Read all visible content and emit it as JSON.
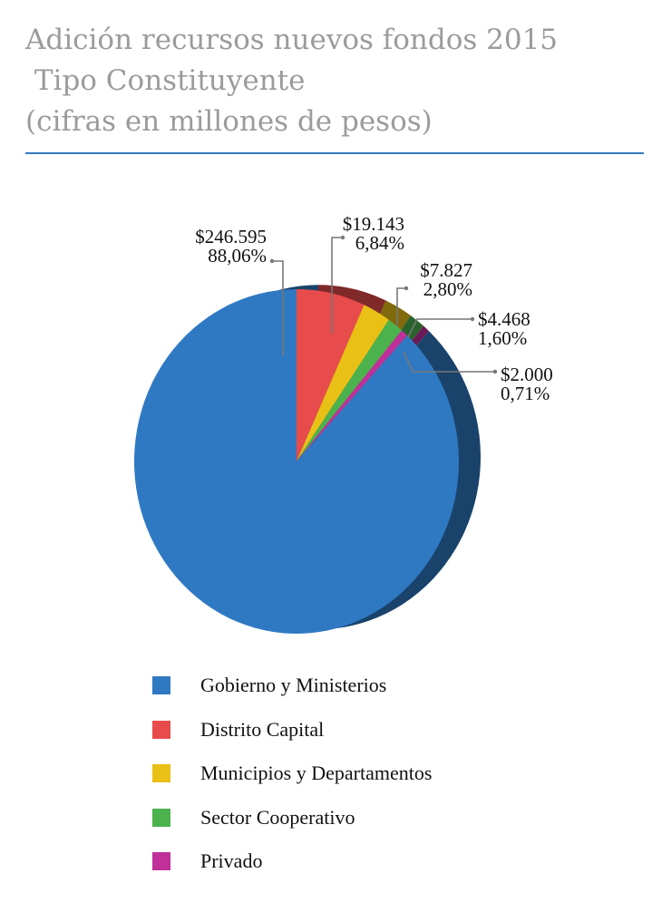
{
  "title": {
    "line1": "Adición recursos nuevos fondos 2015",
    "line2": " Tipo Constituyente",
    "line3": "(cifras en millones de pesos)"
  },
  "chart_data": {
    "type": "pie",
    "title": "Adición recursos nuevos fondos 2015 Tipo Constituyente (cifras en millones de pesos)",
    "categories": [
      "Gobierno y Ministerios",
      "Distrito Capital",
      "Municipios y Departamentos",
      "Sector Cooperativo",
      "Privado"
    ],
    "values": [
      246595,
      19143,
      7827,
      4468,
      2000
    ],
    "percentages": [
      88.06,
      6.84,
      2.8,
      1.6,
      0.71
    ],
    "value_labels": [
      "$246.595",
      "$19.143",
      "$7.827",
      "$4.468",
      "$2.000"
    ],
    "percent_labels": [
      "88,06%",
      "6,84%",
      "2,80%",
      "1,60%",
      "0,71%"
    ],
    "colors": [
      "#2f79c3",
      "#e84b4b",
      "#e9c116",
      "#4cb24e",
      "#c0309a"
    ],
    "legend_position": "bottom"
  },
  "legend": [
    {
      "label": "Gobierno y Ministerios",
      "color": "#2f79c3"
    },
    {
      "label": "Distrito Capital",
      "color": "#e84b4b"
    },
    {
      "label": "Municipios y Departamentos",
      "color": "#e9c116"
    },
    {
      "label": "Sector Cooperativo",
      "color": "#4cb24e"
    },
    {
      "label": "Privado",
      "color": "#c0309a"
    }
  ]
}
